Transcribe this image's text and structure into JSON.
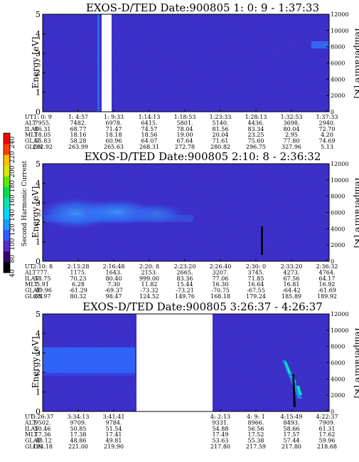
{
  "chart_data": [
    {
      "type": "heatmap",
      "title": "EXOS-D/TED   Date:900805  1: 0: 9 - 1:37:33",
      "ylabel": "Energy [eV]",
      "ylabel_right": "Temperature [K]",
      "ylim": [
        0,
        5
      ],
      "y_ticks": [
        "0",
        "1",
        "2",
        "3",
        "4",
        "5"
      ],
      "ylim_right": [
        0,
        12000
      ],
      "y_ticks_right": [
        "0",
        "2000",
        "4000",
        "6000",
        "8000",
        "10000",
        "12000"
      ],
      "background_color": "#3a2fc8",
      "data_gaps": [
        [
          0.305,
          0.34
        ]
      ],
      "ephemeris_labels": [
        "UT",
        "ALT",
        "ILAT",
        "MLT",
        "GLAT",
        "GLON"
      ],
      "ephemeris": [
        [
          "1: 0: 9",
          "7955.",
          "66.31",
          "18.05",
          "55.83",
          "262.92"
        ],
        [
          "1: 4:57",
          "7482.",
          "68.77",
          "18.16",
          "58.28",
          "263.99"
        ],
        [
          "1: 9:33",
          "6978.",
          "71.47",
          "18.18",
          "60.96",
          "265.63"
        ],
        [
          "1:14:13",
          "6415.",
          "74.57",
          "18.56",
          "64.07",
          "268.31"
        ],
        [
          "1:18:53",
          "5801.",
          "78.04",
          "19.00",
          "67.64",
          "272.78"
        ],
        [
          "1:23:33",
          "5140.",
          "81.56",
          "20.04",
          "71.61",
          "280.82"
        ],
        [
          "1:28:13",
          "4436.",
          "83.34",
          "23.25",
          "75.60",
          "296.75"
        ],
        [
          "1:32:53",
          "3698.",
          "80.04",
          "2.95",
          "77.80",
          "327.96"
        ],
        [
          "1:37:33",
          "2940.",
          "72.70",
          "4.20",
          "74.69",
          "5.13"
        ]
      ]
    },
    {
      "type": "heatmap",
      "title": "EXOS-D/TED   Date:900805  2:10: 8 - 2:36:32",
      "ylabel": "Energy [eV]",
      "ylabel_right": "Temperature [K]",
      "ylim": [
        0,
        5
      ],
      "y_ticks": [
        "0",
        "1",
        "2",
        "3",
        "4",
        "5"
      ],
      "ylim_right": [
        0,
        12000
      ],
      "y_ticks_right": [
        "0",
        "2000",
        "4000",
        "6000",
        "8000",
        "10000",
        "12000"
      ],
      "background_color": "#3a2fc8",
      "ephemeris_labels": [
        "UT",
        "ALT",
        "ILAT",
        "MLT",
        "GLAT",
        "GLON"
      ],
      "ephemeris": [
        [
          "2:10: 8",
          "777.",
          "58.75",
          "5.91",
          "-49.96",
          "68.97"
        ],
        [
          "2:13:28",
          "1175.",
          "70.23",
          "6.28",
          "-61.29",
          "80.32"
        ],
        [
          "2:16:48",
          "1643.",
          "80.40",
          "7.30",
          "-69.37",
          "98.47"
        ],
        [
          "2:20: 8",
          "2153.",
          "999.00",
          "11.82",
          "-73.32",
          "124.52"
        ],
        [
          "2:23:20",
          "2665.",
          "83.36",
          "15.44",
          "-73.21",
          "149.76"
        ],
        [
          "2:26:40",
          "3207.",
          "77.06",
          "16.30",
          "-70.75",
          "168.18"
        ],
        [
          "2:30: 0",
          "3745.",
          "71.85",
          "16.64",
          "-67.55",
          "179.24"
        ],
        [
          "2:33:20",
          "4273.",
          "67.56",
          "16.81",
          "-64.42",
          "185.89"
        ],
        [
          "2:36:32",
          "4764.",
          "64.17",
          "16.92",
          "-61.69",
          "189.92"
        ]
      ]
    },
    {
      "type": "heatmap",
      "title": "EXOS-D/TED   Date:900805  3:26:37 - 4:26:37",
      "ylabel": "Energy [eV]",
      "ylabel_right": "Temperature [K]",
      "ylim": [
        0,
        5
      ],
      "y_ticks": [
        "0",
        "1",
        "2",
        "3",
        "4",
        "5"
      ],
      "ylim_right": [
        0,
        12000
      ],
      "y_ticks_right": [
        "0",
        "2000",
        "4000",
        "6000",
        "8000",
        "10000",
        "12000"
      ],
      "background_color": "#3a2fc8",
      "data_gaps": [
        [
          0.376,
          0.624
        ]
      ],
      "ephemeris_labels": [
        "UT",
        "ALT",
        "ILAT",
        "MLT",
        "GLAT",
        "GLON"
      ],
      "ephemeris_columns": [
        0,
        1,
        2,
        5,
        6,
        7,
        8
      ],
      "ephemeris": [
        [
          "3:26:37",
          "9502.",
          "50.46",
          "17.36",
          "-48.12",
          "193.18"
        ],
        [
          "3:34:13",
          "9709.",
          "50.85",
          "17.38",
          "48.86",
          "221.00"
        ],
        [
          "3:41:41",
          "9784.",
          "51.54",
          "17.41",
          "49.81",
          "219.90"
        ],
        [
          "4: 2:13",
          "9331.",
          "54.88",
          "17.49",
          "53.63",
          "217.80"
        ],
        [
          "4: 9: 1",
          "8966.",
          "56.56",
          "17.52",
          "55.38",
          "217.59"
        ],
        [
          "4:15:49",
          "8493.",
          "58.66",
          "17.57",
          "57.44",
          "217.80"
        ],
        [
          "4:22:37",
          "7909.",
          "61.31",
          "17.62",
          "59.96",
          "218.68"
        ]
      ]
    }
  ],
  "colorbar": {
    "label": "Second Harmonic Current",
    "ticks": [
      "40",
      "80",
      "100",
      "120",
      "140",
      "160",
      "180",
      "200",
      "220",
      "240"
    ],
    "colors": [
      "#000000",
      "#3a0070",
      "#5a2cc8",
      "#2f5cff",
      "#1a9cff",
      "#00d6ff",
      "#00e6b0",
      "#00e050",
      "#60e800",
      "#d8e800",
      "#ffc000",
      "#ff4000",
      "#ff0000"
    ]
  }
}
